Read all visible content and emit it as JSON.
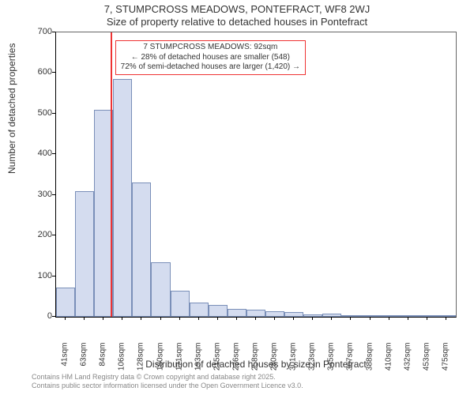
{
  "chart": {
    "type": "histogram",
    "title_line1": "7, STUMPCROSS MEADOWS, PONTEFRACT, WF8 2WJ",
    "title_line2": "Size of property relative to detached houses in Pontefract",
    "y_axis": {
      "label": "Number of detached properties",
      "min": 0,
      "max": 700,
      "ticks": [
        0,
        100,
        200,
        300,
        400,
        500,
        600,
        700
      ]
    },
    "x_axis": {
      "label": "Distribution of detached houses by size in Pontefract",
      "tick_labels": [
        "41sqm",
        "63sqm",
        "84sqm",
        "106sqm",
        "128sqm",
        "150sqm",
        "171sqm",
        "193sqm",
        "215sqm",
        "236sqm",
        "258sqm",
        "280sqm",
        "301sqm",
        "323sqm",
        "345sqm",
        "367sqm",
        "388sqm",
        "410sqm",
        "432sqm",
        "453sqm",
        "475sqm"
      ]
    },
    "bars": {
      "values": [
        72,
        310,
        510,
        585,
        330,
        135,
        65,
        35,
        30,
        20,
        18,
        14,
        12,
        5,
        8,
        3,
        2,
        2,
        1,
        1,
        1
      ],
      "fill_color": "#d4dcef",
      "border_color": "#7a8fb8"
    },
    "marker": {
      "position_sqm": 92,
      "color": "#ee3333"
    },
    "annotation": {
      "line1": "7 STUMPCROSS MEADOWS: 92sqm",
      "line2": "← 28% of detached houses are smaller (548)",
      "line3": "72% of semi-detached houses are larger (1,420) →",
      "border_color": "#ee3333",
      "background_color": "#ffffff"
    },
    "footer": {
      "line1": "Contains HM Land Registry data © Crown copyright and database right 2025.",
      "line2": "Contains public sector information licensed under the Open Government Licence v3.0."
    },
    "colors": {
      "background": "#ffffff",
      "axis": "#000000",
      "text": "#333333",
      "footer_text": "#888888"
    },
    "fonts": {
      "title_size": 13,
      "axis_label_size": 12,
      "tick_size": 11,
      "annotation_size": 10,
      "footer_size": 9
    }
  }
}
